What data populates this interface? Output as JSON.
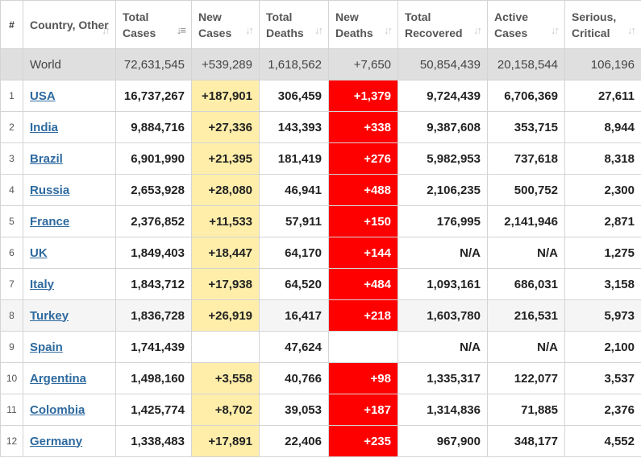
{
  "headers": [
    {
      "key": "idx",
      "label": "#"
    },
    {
      "key": "country",
      "label": "Country, Other"
    },
    {
      "key": "total_cases",
      "label": "Total Cases"
    },
    {
      "key": "new_cases",
      "label": "New Cases"
    },
    {
      "key": "total_deaths",
      "label": "Total Deaths"
    },
    {
      "key": "new_deaths",
      "label": "New Deaths"
    },
    {
      "key": "total_recovered",
      "label": "Total Recovered"
    },
    {
      "key": "active_cases",
      "label": "Active Cases"
    },
    {
      "key": "serious_critical",
      "label": "Serious, Critical"
    }
  ],
  "sorted_column": "total_cases",
  "world": {
    "name": "World",
    "total_cases": "72,631,545",
    "new_cases": "+539,289",
    "total_deaths": "1,618,562",
    "new_deaths": "+7,650",
    "total_recovered": "50,854,439",
    "active_cases": "20,158,544",
    "serious_critical": "106,196"
  },
  "rows": [
    {
      "idx": "1",
      "country": "USA",
      "total_cases": "16,737,267",
      "new_cases": "+187,901",
      "total_deaths": "306,459",
      "new_deaths": "+1,379",
      "total_recovered": "9,724,439",
      "active_cases": "6,706,369",
      "serious_critical": "27,611"
    },
    {
      "idx": "2",
      "country": "India",
      "total_cases": "9,884,716",
      "new_cases": "+27,336",
      "total_deaths": "143,393",
      "new_deaths": "+338",
      "total_recovered": "9,387,608",
      "active_cases": "353,715",
      "serious_critical": "8,944"
    },
    {
      "idx": "3",
      "country": "Brazil",
      "total_cases": "6,901,990",
      "new_cases": "+21,395",
      "total_deaths": "181,419",
      "new_deaths": "+276",
      "total_recovered": "5,982,953",
      "active_cases": "737,618",
      "serious_critical": "8,318"
    },
    {
      "idx": "4",
      "country": "Russia",
      "total_cases": "2,653,928",
      "new_cases": "+28,080",
      "total_deaths": "46,941",
      "new_deaths": "+488",
      "total_recovered": "2,106,235",
      "active_cases": "500,752",
      "serious_critical": "2,300"
    },
    {
      "idx": "5",
      "country": "France",
      "total_cases": "2,376,852",
      "new_cases": "+11,533",
      "total_deaths": "57,911",
      "new_deaths": "+150",
      "total_recovered": "176,995",
      "active_cases": "2,141,946",
      "serious_critical": "2,871"
    },
    {
      "idx": "6",
      "country": "UK",
      "total_cases": "1,849,403",
      "new_cases": "+18,447",
      "total_deaths": "64,170",
      "new_deaths": "+144",
      "total_recovered": "N/A",
      "active_cases": "N/A",
      "serious_critical": "1,275"
    },
    {
      "idx": "7",
      "country": "Italy",
      "total_cases": "1,843,712",
      "new_cases": "+17,938",
      "total_deaths": "64,520",
      "new_deaths": "+484",
      "total_recovered": "1,093,161",
      "active_cases": "686,031",
      "serious_critical": "3,158"
    },
    {
      "idx": "8",
      "country": "Turkey",
      "total_cases": "1,836,728",
      "new_cases": "+26,919",
      "total_deaths": "16,417",
      "new_deaths": "+218",
      "total_recovered": "1,603,780",
      "active_cases": "216,531",
      "serious_critical": "5,973",
      "highlighted": true
    },
    {
      "idx": "9",
      "country": "Spain",
      "total_cases": "1,741,439",
      "new_cases": "",
      "total_deaths": "47,624",
      "new_deaths": "",
      "total_recovered": "N/A",
      "active_cases": "N/A",
      "serious_critical": "2,100"
    },
    {
      "idx": "10",
      "country": "Argentina",
      "total_cases": "1,498,160",
      "new_cases": "+3,558",
      "total_deaths": "40,766",
      "new_deaths": "+98",
      "total_recovered": "1,335,317",
      "active_cases": "122,077",
      "serious_critical": "3,537"
    },
    {
      "idx": "11",
      "country": "Colombia",
      "total_cases": "1,425,774",
      "new_cases": "+8,702",
      "total_deaths": "39,053",
      "new_deaths": "+187",
      "total_recovered": "1,314,836",
      "active_cases": "71,885",
      "serious_critical": "2,376"
    },
    {
      "idx": "12",
      "country": "Germany",
      "total_cases": "1,338,483",
      "new_cases": "+17,891",
      "total_deaths": "22,406",
      "new_deaths": "+235",
      "total_recovered": "967,900",
      "active_cases": "348,177",
      "serious_critical": "4,552"
    }
  ],
  "colors": {
    "new_cases_bg": "#ffeeaa",
    "new_deaths_bg": "#ff0000",
    "world_row_bg": "#dfdfdf",
    "link": "#2e6a9f"
  },
  "icons": {
    "sort": "sort-arrows-icon",
    "sort_active": "sort-desc-icon"
  }
}
